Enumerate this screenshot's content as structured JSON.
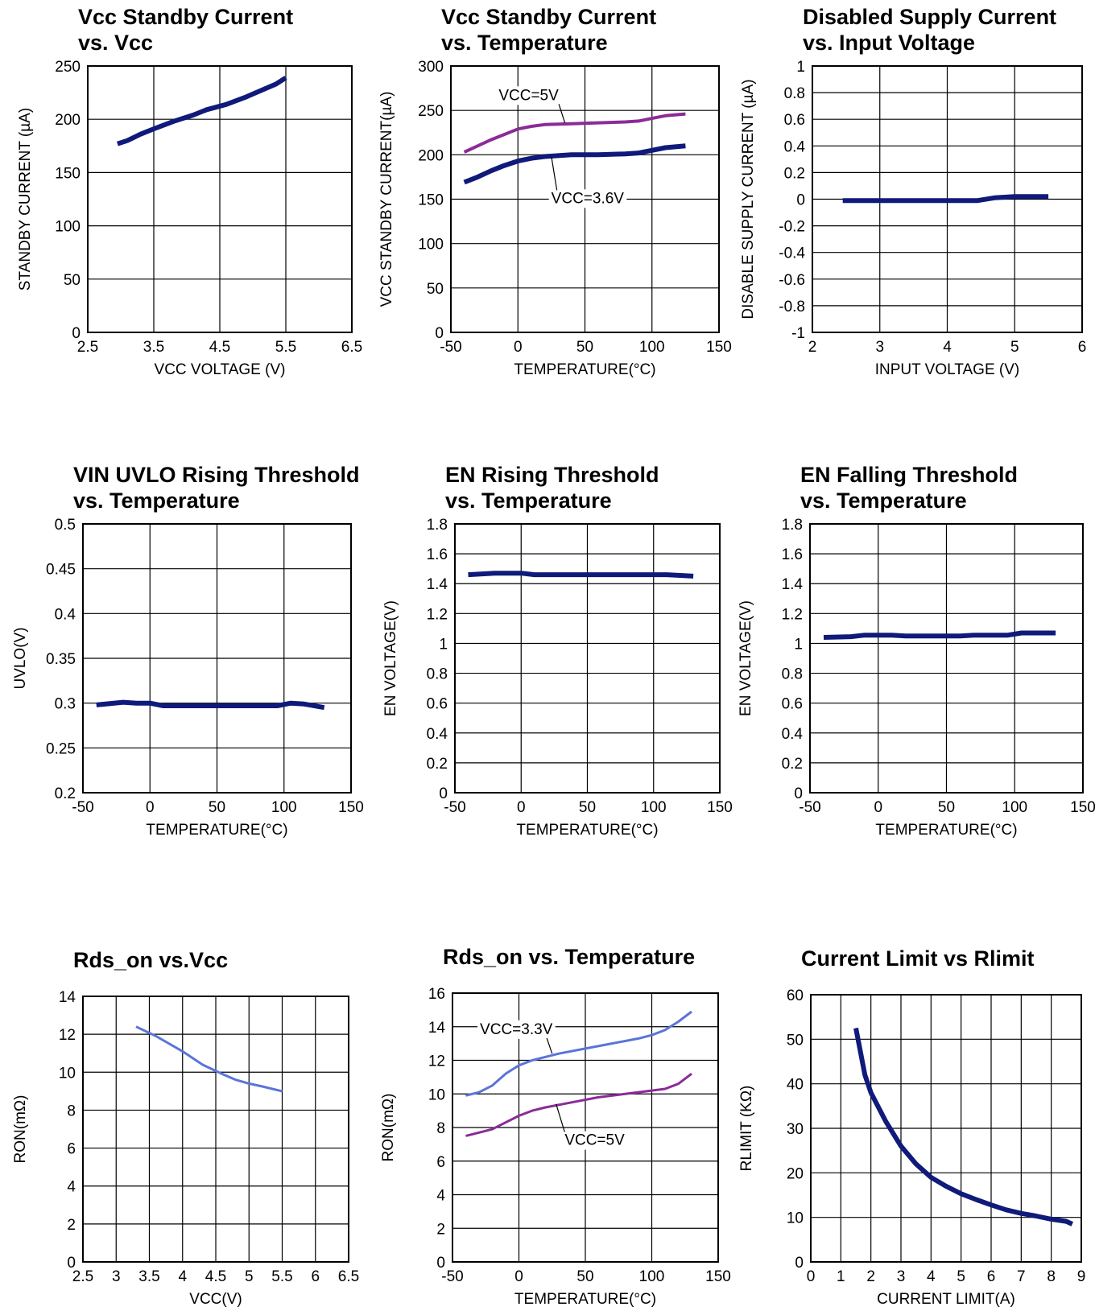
{
  "colors": {
    "navy": "#0f1a7a",
    "purple": "#8b2b97",
    "blue": "#5b74d8"
  },
  "chart_data": [
    {
      "type": "line",
      "title": [
        "Vcc Standby Current",
        "vs. Vcc"
      ],
      "xlabel": "VCC VOLTAGE (V)",
      "ylabel": "STANDBY CURRENT (µA)",
      "xlim": [
        2.5,
        6.5
      ],
      "ylim": [
        0,
        250
      ],
      "xticks": [
        2.5,
        3.5,
        4.5,
        5.5,
        6.5
      ],
      "xtick_labels": [
        "2.5",
        "3.5",
        "4.5",
        "5.5",
        "6.5"
      ],
      "yticks": [
        0,
        50,
        100,
        150,
        200,
        250
      ],
      "ytick_labels": [
        "0",
        "50",
        "100",
        "150",
        "200",
        "250"
      ],
      "grid": true,
      "series": [
        {
          "color": "#0f1a7a",
          "width": 6,
          "points": [
            [
              2.95,
              177
            ],
            [
              3.1,
              180
            ],
            [
              3.3,
              186
            ],
            [
              3.5,
              191
            ],
            [
              3.8,
              198
            ],
            [
              4.1,
              204
            ],
            [
              4.3,
              209
            ],
            [
              4.6,
              214
            ],
            [
              4.9,
              221
            ],
            [
              5.2,
              229
            ],
            [
              5.35,
              233
            ],
            [
              5.5,
              239
            ]
          ]
        }
      ],
      "annotations": []
    },
    {
      "type": "line",
      "title": [
        "Vcc Standby Current",
        "vs. Temperature"
      ],
      "xlabel": "TEMPERATURE(°C)",
      "ylabel": "VCC STANDBY CURRENT(µA)",
      "xlim": [
        -50,
        150
      ],
      "ylim": [
        0,
        300
      ],
      "xticks": [
        -50,
        0,
        50,
        100,
        150
      ],
      "xtick_labels": [
        "-50",
        "0",
        "50",
        "100",
        "150"
      ],
      "yticks": [
        0,
        50,
        100,
        150,
        200,
        250,
        300
      ],
      "ytick_labels": [
        "0",
        "50",
        "100",
        "150",
        "200",
        "250",
        "300"
      ],
      "grid": true,
      "series": [
        {
          "color": "#8b2b97",
          "width": 4,
          "points": [
            [
              -40,
              203
            ],
            [
              -30,
              210
            ],
            [
              -20,
              217
            ],
            [
              -10,
              223
            ],
            [
              0,
              229
            ],
            [
              10,
              232
            ],
            [
              20,
              234
            ],
            [
              40,
              235
            ],
            [
              60,
              236
            ],
            [
              80,
              237
            ],
            [
              90,
              238
            ],
            [
              100,
              241
            ],
            [
              110,
              244
            ],
            [
              125,
              246
            ]
          ]
        },
        {
          "color": "#0f1a7a",
          "width": 6,
          "points": [
            [
              -40,
              169
            ],
            [
              -30,
              175
            ],
            [
              -20,
              182
            ],
            [
              -10,
              188
            ],
            [
              0,
              193
            ],
            [
              10,
              196
            ],
            [
              20,
              198
            ],
            [
              40,
              200
            ],
            [
              60,
              200
            ],
            [
              80,
              201
            ],
            [
              90,
              202
            ],
            [
              100,
              205
            ],
            [
              110,
              208
            ],
            [
              125,
              210
            ]
          ]
        }
      ],
      "annotations": [
        {
          "text": "VCC=5V",
          "x": 8,
          "y": 268,
          "to": [
            35,
            236
          ]
        },
        {
          "text": "VCC=3.6V",
          "x": 52,
          "y": 152,
          "to": [
            25,
            198
          ]
        }
      ]
    },
    {
      "type": "line",
      "title": [
        "Disabled Supply Current",
        "vs. Input Voltage"
      ],
      "xlabel": "INPUT VOLTAGE (V)",
      "ylabel": "DISABLE SUPPLY CURRENT (µA)",
      "xlim": [
        2,
        6
      ],
      "ylim": [
        -1,
        1
      ],
      "xticks": [
        2,
        3,
        4,
        5,
        6
      ],
      "xtick_labels": [
        "2",
        "3",
        "4",
        "5",
        "6"
      ],
      "yticks": [
        -1,
        -0.8,
        -0.6,
        -0.4,
        -0.2,
        0,
        0.2,
        0.4,
        0.6,
        0.8,
        1
      ],
      "ytick_labels": [
        "-1",
        "-0.8",
        "-0.6",
        "-0.4",
        "-0.2",
        "0",
        "0.2",
        "0.4",
        "0.6",
        "0.8",
        "1"
      ],
      "grid": true,
      "series": [
        {
          "color": "#0f1a7a",
          "width": 6,
          "points": [
            [
              2.45,
              -0.01
            ],
            [
              3.0,
              -0.01
            ],
            [
              3.5,
              -0.01
            ],
            [
              4.0,
              -0.01
            ],
            [
              4.45,
              -0.01
            ],
            [
              4.7,
              0.01
            ],
            [
              5.0,
              0.02
            ],
            [
              5.5,
              0.02
            ]
          ]
        }
      ],
      "annotations": []
    },
    {
      "type": "line",
      "title": [
        "VIN UVLO Rising Threshold",
        "vs. Temperature"
      ],
      "xlabel": "TEMPERATURE(°C)",
      "ylabel": "UVLO(V)",
      "xlim": [
        -50,
        150
      ],
      "ylim": [
        0.2,
        0.5
      ],
      "xticks": [
        -50,
        0,
        50,
        100,
        150
      ],
      "xtick_labels": [
        "-50",
        "0",
        "50",
        "100",
        "150"
      ],
      "yticks": [
        0.2,
        0.25,
        0.3,
        0.35,
        0.4,
        0.45,
        0.5
      ],
      "ytick_labels": [
        "0.2",
        "0.25",
        "0.3",
        "0.35",
        "0.4",
        "0.45",
        "0.5"
      ],
      "grid": true,
      "series": [
        {
          "color": "#0f1a7a",
          "width": 6,
          "points": [
            [
              -40,
              0.298
            ],
            [
              -20,
              0.301
            ],
            [
              -10,
              0.3
            ],
            [
              0,
              0.3
            ],
            [
              10,
              0.297
            ],
            [
              50,
              0.297
            ],
            [
              95,
              0.297
            ],
            [
              105,
              0.3
            ],
            [
              115,
              0.299
            ],
            [
              130,
              0.295
            ]
          ]
        }
      ],
      "annotations": []
    },
    {
      "type": "line",
      "title": [
        "EN Rising Threshold",
        "vs. Temperature"
      ],
      "xlabel": "TEMPERATURE(°C)",
      "ylabel": "EN VOLTAGE(V)",
      "xlim": [
        -50,
        150
      ],
      "ylim": [
        0,
        1.8
      ],
      "xticks": [
        -50,
        0,
        50,
        100,
        150
      ],
      "xtick_labels": [
        "-50",
        "0",
        "50",
        "100",
        "150"
      ],
      "yticks": [
        0,
        0.2,
        0.4,
        0.6,
        0.8,
        1,
        1.2,
        1.4,
        1.6,
        1.8
      ],
      "ytick_labels": [
        "0",
        "0.2",
        "0.4",
        "0.6",
        "0.8",
        "1",
        "1.2",
        "1.4",
        "1.6",
        "1.8"
      ],
      "grid": true,
      "series": [
        {
          "color": "#0f1a7a",
          "width": 6,
          "points": [
            [
              -40,
              1.46
            ],
            [
              -20,
              1.47
            ],
            [
              0,
              1.47
            ],
            [
              10,
              1.46
            ],
            [
              50,
              1.46
            ],
            [
              90,
              1.46
            ],
            [
              110,
              1.46
            ],
            [
              130,
              1.45
            ]
          ]
        }
      ],
      "annotations": []
    },
    {
      "type": "line",
      "title": [
        "EN Falling Threshold",
        "vs. Temperature"
      ],
      "xlabel": "TEMPERATURE(°C)",
      "ylabel": "EN VOLTAGE(V)",
      "xlim": [
        -50,
        150
      ],
      "ylim": [
        0,
        1.8
      ],
      "xticks": [
        -50,
        0,
        50,
        100,
        150
      ],
      "xtick_labels": [
        "-50",
        "0",
        "50",
        "100",
        "150"
      ],
      "yticks": [
        0,
        0.2,
        0.4,
        0.6,
        0.8,
        1,
        1.2,
        1.4,
        1.6,
        1.8
      ],
      "ytick_labels": [
        "0",
        "0.2",
        "0.4",
        "0.6",
        "0.8",
        "1",
        "1.2",
        "1.4",
        "1.6",
        "1.8"
      ],
      "grid": true,
      "series": [
        {
          "color": "#0f1a7a",
          "width": 6,
          "points": [
            [
              -40,
              1.04
            ],
            [
              -20,
              1.045
            ],
            [
              -10,
              1.055
            ],
            [
              10,
              1.055
            ],
            [
              20,
              1.05
            ],
            [
              60,
              1.05
            ],
            [
              70,
              1.055
            ],
            [
              95,
              1.055
            ],
            [
              105,
              1.07
            ],
            [
              130,
              1.07
            ]
          ]
        }
      ],
      "annotations": []
    },
    {
      "type": "line",
      "title": [
        "Rds_on vs.Vcc"
      ],
      "xlabel": "VCC(V)",
      "ylabel": "RON(mΩ)",
      "xlim": [
        2.5,
        6.5
      ],
      "ylim": [
        0,
        14
      ],
      "xticks": [
        2.5,
        3,
        3.5,
        4,
        4.5,
        5,
        5.5,
        6,
        6.5
      ],
      "xtick_labels": [
        "2.5",
        "3",
        "3.5",
        "4",
        "4.5",
        "5",
        "5.5",
        "6",
        "6.5"
      ],
      "yticks": [
        0,
        2,
        4,
        6,
        8,
        10,
        12,
        14
      ],
      "ytick_labels": [
        "0",
        "2",
        "4",
        "6",
        "8",
        "10",
        "12",
        "14"
      ],
      "grid": true,
      "series": [
        {
          "color": "#5b74d8",
          "width": 3,
          "points": [
            [
              3.3,
              12.4
            ],
            [
              3.6,
              11.9
            ],
            [
              4.0,
              11.1
            ],
            [
              4.3,
              10.4
            ],
            [
              4.6,
              9.9
            ],
            [
              4.8,
              9.6
            ],
            [
              5.0,
              9.4
            ],
            [
              5.2,
              9.25
            ],
            [
              5.5,
              9.0
            ]
          ]
        }
      ],
      "annotations": []
    },
    {
      "type": "line",
      "title": [
        "Rds_on vs. Temperature"
      ],
      "xlabel": "TEMPERATURE(°C)",
      "ylabel": "RON(mΩ)",
      "xlim": [
        -50,
        150
      ],
      "ylim": [
        0,
        16
      ],
      "xticks": [
        -50,
        0,
        50,
        100,
        150
      ],
      "xtick_labels": [
        "-50",
        "0",
        "50",
        "100",
        "150"
      ],
      "yticks": [
        0,
        2,
        4,
        6,
        8,
        10,
        12,
        14,
        16
      ],
      "ytick_labels": [
        "0",
        "2",
        "4",
        "6",
        "8",
        "10",
        "12",
        "14",
        "16"
      ],
      "grid": true,
      "series": [
        {
          "color": "#5b74d8",
          "width": 3,
          "points": [
            [
              -40,
              9.9
            ],
            [
              -30,
              10.1
            ],
            [
              -20,
              10.5
            ],
            [
              -10,
              11.2
            ],
            [
              0,
              11.7
            ],
            [
              10,
              12.0
            ],
            [
              20,
              12.2
            ],
            [
              30,
              12.4
            ],
            [
              50,
              12.7
            ],
            [
              70,
              13.0
            ],
            [
              90,
              13.3
            ],
            [
              100,
              13.5
            ],
            [
              110,
              13.8
            ],
            [
              120,
              14.3
            ],
            [
              130,
              14.9
            ]
          ]
        },
        {
          "color": "#8b2b97",
          "width": 3,
          "points": [
            [
              -40,
              7.5
            ],
            [
              -30,
              7.7
            ],
            [
              -20,
              7.9
            ],
            [
              -10,
              8.3
            ],
            [
              0,
              8.7
            ],
            [
              10,
              9.0
            ],
            [
              20,
              9.2
            ],
            [
              40,
              9.5
            ],
            [
              60,
              9.8
            ],
            [
              80,
              10.0
            ],
            [
              100,
              10.2
            ],
            [
              110,
              10.3
            ],
            [
              120,
              10.6
            ],
            [
              130,
              11.2
            ]
          ]
        }
      ],
      "annotations": [
        {
          "text": "VCC=3.3V",
          "x": -2,
          "y": 13.9,
          "to": [
            25,
            12.4
          ]
        },
        {
          "text": "VCC=5V",
          "x": 57,
          "y": 7.3,
          "to": [
            28,
            9.4
          ]
        }
      ]
    },
    {
      "type": "line",
      "title": [
        "Current Limit vs Rlimit"
      ],
      "xlabel": "CURRENT LIMIT(A)",
      "ylabel": "RLIMIT (KΩ)",
      "xlim": [
        0,
        9
      ],
      "ylim": [
        0,
        60
      ],
      "xticks": [
        0,
        1,
        2,
        3,
        4,
        5,
        6,
        7,
        8,
        9
      ],
      "xtick_labels": [
        "0",
        "1",
        "2",
        "3",
        "4",
        "5",
        "6",
        "7",
        "8",
        "9"
      ],
      "yticks": [
        0,
        10,
        20,
        30,
        40,
        50,
        60
      ],
      "ytick_labels": [
        "0",
        "10",
        "20",
        "30",
        "40",
        "50",
        "60"
      ],
      "grid": true,
      "series": [
        {
          "color": "#0f1a7a",
          "width": 6,
          "points": [
            [
              1.5,
              52.5
            ],
            [
              1.8,
              42
            ],
            [
              2.0,
              38
            ],
            [
              2.5,
              31.5
            ],
            [
              3.0,
              26
            ],
            [
              3.5,
              22
            ],
            [
              4.0,
              19
            ],
            [
              4.5,
              17
            ],
            [
              5.0,
              15.3
            ],
            [
              5.5,
              14
            ],
            [
              6.0,
              12.8
            ],
            [
              6.5,
              11.7
            ],
            [
              7.0,
              10.9
            ],
            [
              7.5,
              10.3
            ],
            [
              8.0,
              9.6
            ],
            [
              8.5,
              9.1
            ],
            [
              8.7,
              8.5
            ]
          ]
        }
      ],
      "annotations": []
    }
  ]
}
